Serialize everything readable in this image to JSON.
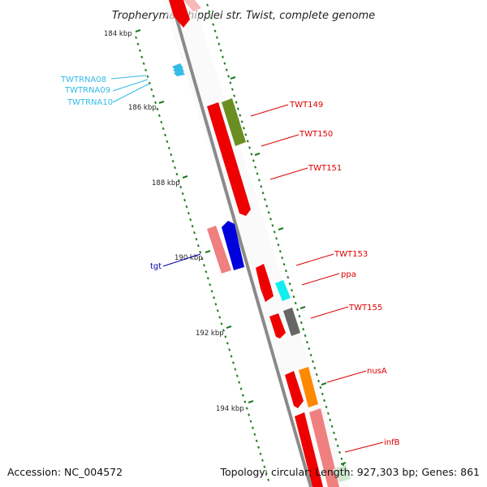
{
  "title": "Tropheryma whipplei str. Twist, complete genome",
  "footer": {
    "accession": "Accession: NC_004572",
    "topology": "Topology: circular; Length: 927,303 bp; Genes: 861"
  },
  "colors": {
    "backbone": "#8a8a8a",
    "tick": "#1f7a1f",
    "rna_label": "#33bbe6",
    "gene_label": "#dd0000",
    "tgt_label": "#0000aa"
  },
  "kbp_labels": [
    "184 kbp",
    "186 kbp",
    "188 kbp",
    "190 kbp",
    "192 kbp",
    "194 kbp"
  ],
  "genes": [
    {
      "label": "TWTRNA08",
      "type": "rna",
      "color": "#33bbe6"
    },
    {
      "label": "TWTRNA09",
      "type": "rna",
      "color": "#33bbe6"
    },
    {
      "label": "TWTRNA10",
      "type": "rna",
      "color": "#33bbe6"
    },
    {
      "label": "TWT149",
      "type": "cds",
      "color": "#6b8e23"
    },
    {
      "label": "TWT150",
      "type": "cds",
      "color": "#ee0000"
    },
    {
      "label": "TWT151",
      "type": "cds",
      "color": "#ee0000"
    },
    {
      "label": "tgt",
      "type": "cds",
      "color": "#0000dd"
    },
    {
      "label": "TWT153",
      "type": "cds",
      "color": "#ee0000"
    },
    {
      "label": "ppa",
      "type": "cds",
      "color": "#11eeee"
    },
    {
      "label": "TWT155",
      "type": "cds",
      "color": "#666666"
    },
    {
      "label": "nusA",
      "type": "cds",
      "color": "#ff8800"
    },
    {
      "label": "infB",
      "type": "cds",
      "color": "#f08080"
    }
  ]
}
